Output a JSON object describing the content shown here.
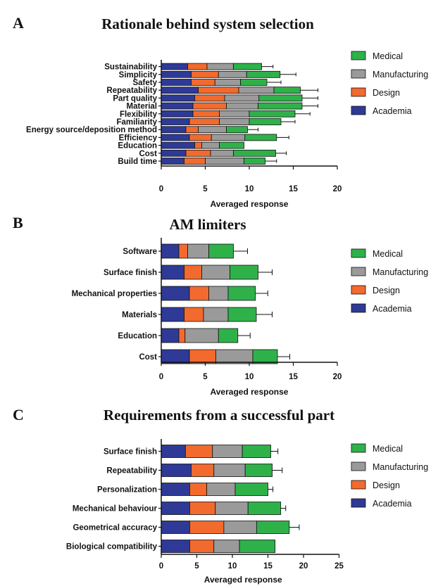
{
  "colors": {
    "Academia": "#2e3a96",
    "Design": "#f26a2e",
    "Manufacturing": "#9a9a9a",
    "Medical": "#2fb14a",
    "outline": "#111111"
  },
  "chart_data": [
    {
      "type": "bar",
      "orientation": "horizontal",
      "stacked": true,
      "panel": "A",
      "title": "Rationale behind system selection",
      "xlabel": "Averaged response",
      "xlim": [
        0,
        20
      ],
      "xticks": [
        0,
        5,
        10,
        15,
        20
      ],
      "legend": "right",
      "categories": [
        "Sustainability",
        "Simplicity",
        "Safety",
        "Repeatability",
        "Part quality",
        "Material",
        "Flexibility",
        "Familiarity",
        "Energy source/deposition method",
        "Efficiency",
        "Education",
        "Cost",
        "Build time"
      ],
      "series": [
        {
          "name": "Academia",
          "values": [
            3.0,
            3.4,
            3.4,
            4.2,
            3.8,
            3.6,
            3.6,
            3.2,
            2.8,
            3.2,
            3.8,
            2.8,
            2.6
          ]
        },
        {
          "name": "Design",
          "values": [
            2.2,
            3.1,
            2.7,
            4.6,
            3.4,
            3.8,
            3.0,
            3.4,
            1.4,
            2.5,
            0.8,
            2.8,
            2.4
          ]
        },
        {
          "name": "Manufacturing",
          "values": [
            3.0,
            3.2,
            2.9,
            4.0,
            3.9,
            3.6,
            3.4,
            3.4,
            3.2,
            3.8,
            2.0,
            2.6,
            4.4
          ]
        },
        {
          "name": "Medical",
          "values": [
            3.2,
            3.8,
            3.0,
            3.0,
            4.9,
            5.0,
            5.2,
            3.6,
            2.4,
            3.6,
            2.8,
            4.8,
            2.4
          ]
        }
      ],
      "errors": [
        {
          "name": "Academia",
          "values": [
            0,
            0,
            0,
            0,
            0,
            0,
            0,
            0,
            0,
            0,
            0,
            0,
            0
          ]
        },
        {
          "name": "Design",
          "values": [
            1.0,
            0.9,
            0.8,
            1.6,
            1.2,
            1.2,
            1.1,
            1.0,
            0.6,
            0.9,
            0.5,
            0.9,
            0.8
          ]
        },
        {
          "name": "Manufacturing",
          "values": [
            1.1,
            1.0,
            1.0,
            1.2,
            1.3,
            1.2,
            1.2,
            1.0,
            1.0,
            1.1,
            0.8,
            0.9,
            1.2
          ]
        },
        {
          "name": "Medical",
          "values": [
            1.3,
            1.8,
            1.6,
            2.0,
            1.8,
            1.8,
            1.7,
            1.6,
            1.2,
            1.4,
            0,
            1.2,
            1.3
          ]
        }
      ]
    },
    {
      "type": "bar",
      "orientation": "horizontal",
      "stacked": true,
      "panel": "B",
      "title": "AM limiters",
      "xlabel": "Averaged response",
      "xlim": [
        0,
        20
      ],
      "xticks": [
        0,
        5,
        10,
        15,
        20
      ],
      "legend": "right",
      "categories": [
        "Software",
        "Surface finish",
        "Mechanical properties",
        "Materials",
        "Education",
        "Cost"
      ],
      "series": [
        {
          "name": "Academia",
          "values": [
            2.0,
            2.6,
            3.2,
            2.6,
            2.0,
            3.2
          ]
        },
        {
          "name": "Design",
          "values": [
            1.0,
            2.0,
            2.2,
            2.2,
            0.7,
            3.0
          ]
        },
        {
          "name": "Manufacturing",
          "values": [
            2.4,
            3.2,
            2.2,
            2.8,
            3.8,
            4.2
          ]
        },
        {
          "name": "Medical",
          "values": [
            2.8,
            3.2,
            3.1,
            3.2,
            2.2,
            2.8
          ]
        }
      ],
      "errors": [
        {
          "name": "Academia",
          "values": [
            0,
            0,
            0,
            0,
            0,
            0
          ]
        },
        {
          "name": "Design",
          "values": [
            0,
            1.2,
            1.4,
            1.2,
            0,
            1.6
          ]
        },
        {
          "name": "Manufacturing",
          "values": [
            0.9,
            1.1,
            1.0,
            1.1,
            0.9,
            1.1
          ]
        },
        {
          "name": "Medical",
          "values": [
            1.6,
            1.6,
            1.4,
            1.8,
            1.4,
            1.4
          ]
        }
      ]
    },
    {
      "type": "bar",
      "orientation": "horizontal",
      "stacked": true,
      "panel": "C",
      "title": "Requirements from a successful part",
      "xlabel": "Averaged response",
      "xlim": [
        0,
        25
      ],
      "xticks": [
        0,
        5,
        10,
        15,
        20,
        25
      ],
      "legend": "right",
      "categories": [
        "Surface finish",
        "Repeatability",
        "Personalization",
        "Mechanical behaviour",
        "Geometrical accuracy",
        "Biological compatibility"
      ],
      "series": [
        {
          "name": "Academia",
          "values": [
            3.4,
            4.2,
            4.0,
            4.0,
            4.0,
            4.0
          ]
        },
        {
          "name": "Design",
          "values": [
            3.8,
            3.2,
            2.4,
            3.6,
            4.8,
            3.4
          ]
        },
        {
          "name": "Manufacturing",
          "values": [
            4.2,
            4.4,
            4.0,
            4.6,
            4.6,
            3.6
          ]
        },
        {
          "name": "Medical",
          "values": [
            4.0,
            3.8,
            4.6,
            4.6,
            4.6,
            5.0
          ]
        }
      ],
      "errors": [
        {
          "name": "Academia",
          "values": [
            0,
            0,
            0,
            0,
            0,
            0
          ]
        },
        {
          "name": "Design",
          "values": [
            1.6,
            1.4,
            1.6,
            1.8,
            2.0,
            1.6
          ]
        },
        {
          "name": "Manufacturing",
          "values": [
            0.8,
            2.2,
            1.8,
            0.8,
            0.5,
            1.6
          ]
        },
        {
          "name": "Medical",
          "values": [
            1.0,
            1.4,
            0.7,
            0.7,
            1.4,
            0
          ]
        }
      ]
    }
  ]
}
